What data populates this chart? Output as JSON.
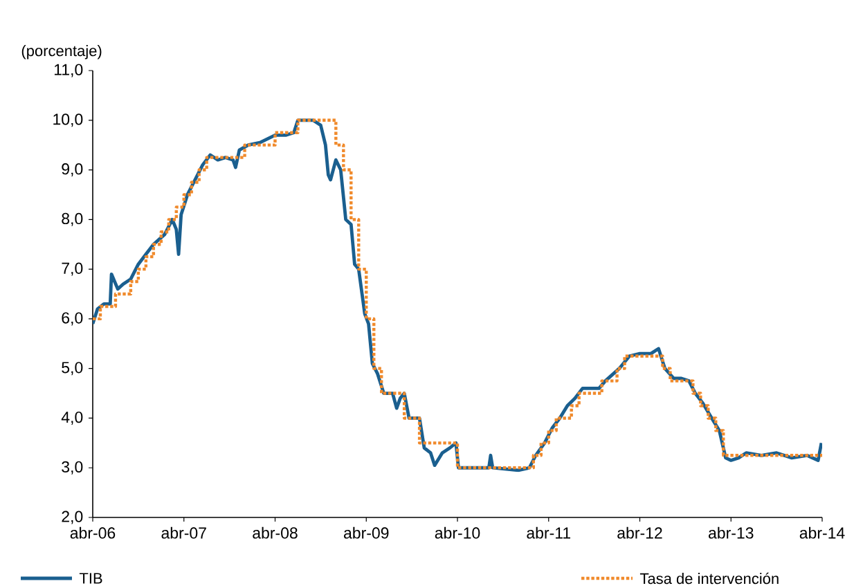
{
  "chart_data": {
    "type": "line",
    "ylabel": "(porcentaje)",
    "legend": "bottom",
    "marker": "none",
    "xlim": [
      "2006-04-01",
      "2014-04-01"
    ],
    "xticks": [
      {
        "value": "2006-04-01",
        "label": "abr-06"
      },
      {
        "value": "2007-04-01",
        "label": "abr-07"
      },
      {
        "value": "2008-04-01",
        "label": "abr-08"
      },
      {
        "value": "2009-04-01",
        "label": "abr-09"
      },
      {
        "value": "2010-04-01",
        "label": "abr-10"
      },
      {
        "value": "2011-04-01",
        "label": "abr-11"
      },
      {
        "value": "2012-04-01",
        "label": "abr-12"
      },
      {
        "value": "2013-04-01",
        "label": "abr-13"
      },
      {
        "value": "2014-04-01",
        "label": "abr-14"
      }
    ],
    "ylim": [
      2,
      11
    ],
    "yticks": [
      {
        "value": 2,
        "label": "2,0"
      },
      {
        "value": 3,
        "label": "3,0"
      },
      {
        "value": 4,
        "label": "4,0"
      },
      {
        "value": 5,
        "label": "5,0"
      },
      {
        "value": 6,
        "label": "6,0"
      },
      {
        "value": 7,
        "label": "7,0"
      },
      {
        "value": 8,
        "label": "8,0"
      },
      {
        "value": 9,
        "label": "9,0"
      },
      {
        "value": 10,
        "label": "10,0"
      },
      {
        "value": 11,
        "label": "11,0"
      }
    ],
    "series": [
      {
        "name": "TIB",
        "type": "line",
        "line_style": "solid",
        "color": "#1a5f8f",
        "x": [
          "2006-04-01",
          "2006-04-20",
          "2006-05-15",
          "2006-06-10",
          "2006-06-15",
          "2006-07-10",
          "2006-08-01",
          "2006-09-01",
          "2006-10-01",
          "2006-11-01",
          "2006-12-01",
          "2007-01-15",
          "2007-02-15",
          "2007-03-01",
          "2007-03-10",
          "2007-03-20",
          "2007-04-15",
          "2007-05-15",
          "2007-06-15",
          "2007-07-15",
          "2007-08-15",
          "2007-09-15",
          "2007-10-15",
          "2007-10-25",
          "2007-11-10",
          "2007-12-15",
          "2008-02-01",
          "2008-04-01",
          "2008-05-15",
          "2008-06-15",
          "2008-07-01",
          "2008-09-01",
          "2008-10-01",
          "2008-10-20",
          "2008-11-01",
          "2008-11-10",
          "2008-12-01",
          "2008-12-20",
          "2009-01-10",
          "2009-02-01",
          "2009-02-15",
          "2009-03-01",
          "2009-03-25",
          "2009-04-10",
          "2009-04-25",
          "2009-05-15",
          "2009-06-10",
          "2009-07-15",
          "2009-08-01",
          "2009-08-15",
          "2009-09-01",
          "2009-09-20",
          "2009-11-01",
          "2009-11-20",
          "2009-12-15",
          "2010-01-01",
          "2010-02-01",
          "2010-03-01",
          "2010-03-25",
          "2010-04-05",
          "2010-08-05",
          "2010-08-12",
          "2010-08-20",
          "2010-12-01",
          "2011-01-15",
          "2011-02-10",
          "2011-03-15",
          "2011-04-15",
          "2011-05-15",
          "2011-06-15",
          "2011-07-15",
          "2011-08-15",
          "2011-09-20",
          "2011-10-20",
          "2011-11-15",
          "2012-01-10",
          "2012-02-20",
          "2012-04-01",
          "2012-05-15",
          "2012-06-15",
          "2012-07-10",
          "2012-08-15",
          "2012-09-15",
          "2012-10-15",
          "2012-11-10",
          "2012-12-10",
          "2013-01-15",
          "2013-02-15",
          "2013-03-10",
          "2013-04-01",
          "2013-05-01",
          "2013-06-01",
          "2013-08-01",
          "2013-10-01",
          "2013-12-01",
          "2014-02-01",
          "2014-03-15",
          "2014-03-28"
        ],
        "values": [
          5.9,
          6.2,
          6.3,
          6.3,
          6.9,
          6.6,
          6.7,
          6.8,
          7.1,
          7.3,
          7.5,
          7.7,
          8.0,
          7.8,
          7.3,
          8.1,
          8.5,
          8.8,
          9.1,
          9.3,
          9.2,
          9.25,
          9.2,
          9.05,
          9.4,
          9.5,
          9.55,
          9.7,
          9.7,
          9.75,
          10.0,
          10.0,
          9.9,
          9.5,
          8.9,
          8.8,
          9.2,
          9.0,
          8.0,
          7.9,
          7.1,
          7.0,
          6.1,
          5.9,
          5.1,
          4.9,
          4.5,
          4.5,
          4.2,
          4.4,
          4.5,
          4.0,
          4.0,
          3.4,
          3.3,
          3.05,
          3.3,
          3.4,
          3.5,
          3.0,
          3.0,
          3.25,
          3.0,
          2.95,
          3.0,
          3.25,
          3.5,
          3.8,
          4.0,
          4.25,
          4.4,
          4.6,
          4.6,
          4.6,
          4.75,
          5.0,
          5.25,
          5.3,
          5.3,
          5.4,
          5.0,
          4.8,
          4.8,
          4.75,
          4.5,
          4.3,
          4.0,
          3.75,
          3.2,
          3.15,
          3.2,
          3.3,
          3.25,
          3.3,
          3.2,
          3.25,
          3.15,
          3.5
        ]
      },
      {
        "name": "Tasa de intervención",
        "type": "step",
        "line_style": "dotted",
        "color": "#f08a2c",
        "x": [
          "2006-04-01",
          "2006-05-01",
          "2006-07-01",
          "2006-09-01",
          "2006-10-01",
          "2006-11-01",
          "2006-12-01",
          "2007-01-01",
          "2007-02-01",
          "2007-03-01",
          "2007-04-01",
          "2007-05-01",
          "2007-06-01",
          "2007-07-01",
          "2007-12-01",
          "2008-04-01",
          "2008-07-01",
          "2008-12-01",
          "2009-01-01",
          "2009-02-01",
          "2009-03-01",
          "2009-04-01",
          "2009-05-01",
          "2009-06-01",
          "2009-09-01",
          "2009-11-01",
          "2010-04-01",
          "2011-02-01",
          "2011-03-01",
          "2011-04-01",
          "2011-05-01",
          "2011-07-01",
          "2011-08-01",
          "2011-11-01",
          "2012-01-01",
          "2012-02-01",
          "2012-07-01",
          "2012-08-01",
          "2012-11-01",
          "2012-12-01",
          "2013-01-01",
          "2013-02-01",
          "2013-03-01",
          "2014-04-01"
        ],
        "values": [
          6.0,
          6.25,
          6.5,
          6.75,
          7.0,
          7.25,
          7.5,
          7.75,
          8.0,
          8.25,
          8.5,
          8.75,
          9.0,
          9.25,
          9.5,
          9.75,
          10.0,
          9.5,
          9.0,
          8.0,
          7.0,
          6.0,
          5.0,
          4.5,
          4.0,
          3.5,
          3.0,
          3.25,
          3.5,
          3.75,
          4.0,
          4.25,
          4.5,
          4.75,
          5.0,
          5.25,
          5.0,
          4.75,
          4.5,
          4.25,
          4.0,
          3.75,
          3.25,
          3.25
        ]
      }
    ]
  }
}
